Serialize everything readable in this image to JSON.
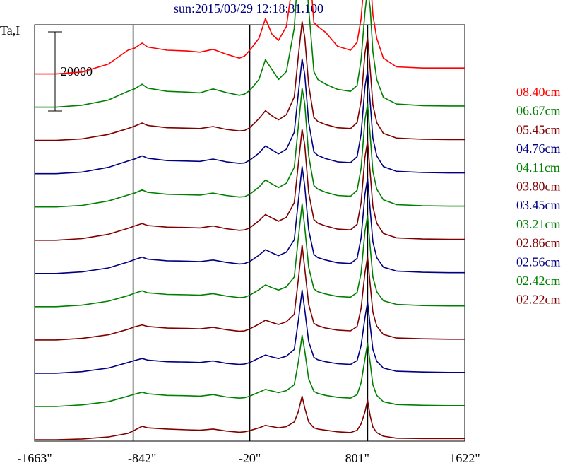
{
  "title": "sun:2015/03/29 12:18:31.100",
  "ylabel": "Ta,I",
  "scale_bar_label": "20000",
  "colors": {
    "red": "#ff0000",
    "green": "#008000",
    "darkred": "#800000",
    "navy": "#000080",
    "black": "#000000"
  },
  "chart_data": {
    "type": "line",
    "title": "sun:2015/03/29 12:18:31.100",
    "ylabel": "Ta,I",
    "x_ticks": [
      "-1663\"",
      "-842\"",
      "-20\"",
      "801\"",
      "1622\""
    ],
    "xlim": [
      -1663,
      1622
    ],
    "vertical_lines": [
      -910,
      -20,
      880
    ],
    "scale_bar": 20000,
    "stack_offset": 8400,
    "x": [
      -1663,
      -1500,
      -1300,
      -1100,
      -950,
      -900,
      -842,
      -800,
      -650,
      -500,
      -400,
      -300,
      -200,
      -100,
      -60,
      -20,
      50,
      100,
      150,
      200,
      260,
      320,
      350,
      380,
      400,
      430,
      470,
      500,
      560,
      650,
      750,
      800,
      830,
      860,
      880,
      900,
      920,
      950,
      1000,
      1100,
      1300,
      1500,
      1622
    ],
    "series": [
      {
        "name": "08.40cm",
        "color": "red",
        "values": [
          0,
          0,
          500,
          2500,
          6000,
          6500,
          7800,
          6800,
          6000,
          5800,
          5500,
          6200,
          5000,
          4000,
          4500,
          6000,
          9000,
          14000,
          10000,
          8500,
          12000,
          26000,
          36000,
          40000,
          38000,
          30000,
          13000,
          12000,
          10500,
          7000,
          6000,
          8000,
          14000,
          26000,
          32000,
          25000,
          15000,
          9000,
          4000,
          1800,
          1500,
          1500,
          1500
        ]
      },
      {
        "name": "06.67cm",
        "color": "green",
        "values": [
          0,
          0,
          500,
          1800,
          4000,
          4600,
          5800,
          4800,
          4000,
          3800,
          3600,
          4600,
          3700,
          3000,
          3300,
          4200,
          7000,
          12000,
          9500,
          7000,
          9000,
          20000,
          35000,
          42000,
          38000,
          25000,
          9000,
          7000,
          5800,
          4500,
          4000,
          5500,
          12000,
          24000,
          30000,
          25000,
          14000,
          7000,
          2500,
          800,
          400,
          300,
          300
        ]
      },
      {
        "name": "05.45cm",
        "color": "darkred",
        "values": [
          0,
          0,
          400,
          1500,
          3000,
          3600,
          4400,
          3800,
          3200,
          3100,
          3000,
          3500,
          2800,
          2400,
          2500,
          3200,
          5500,
          7500,
          6200,
          5200,
          6500,
          11000,
          21000,
          30000,
          26000,
          14000,
          5800,
          4800,
          4000,
          3200,
          3000,
          4500,
          10000,
          22000,
          26000,
          18000,
          9000,
          4500,
          1800,
          600,
          300,
          200,
          200
        ]
      },
      {
        "name": "04.76cm",
        "color": "navy",
        "values": [
          0,
          0,
          400,
          1600,
          3200,
          3700,
          4500,
          3900,
          3300,
          3200,
          3100,
          3700,
          3000,
          2600,
          2700,
          3400,
          5200,
          7000,
          6000,
          5000,
          6200,
          10500,
          20000,
          29000,
          25000,
          13000,
          5500,
          4600,
          3800,
          3000,
          2800,
          4300,
          10000,
          22000,
          26000,
          18000,
          9000,
          4500,
          1800,
          600,
          300,
          200,
          200
        ]
      },
      {
        "name": "04.11cm",
        "color": "green",
        "values": [
          0,
          0,
          400,
          1500,
          3000,
          3500,
          4300,
          3700,
          3200,
          3100,
          3000,
          3500,
          2900,
          2500,
          2600,
          3200,
          5000,
          6800,
          5800,
          4900,
          6000,
          10000,
          20000,
          30000,
          26000,
          13000,
          5400,
          4500,
          3700,
          2900,
          2700,
          4200,
          9800,
          22000,
          26000,
          18000,
          9000,
          4500,
          1800,
          600,
          300,
          200,
          200
        ]
      },
      {
        "name": "03.80cm",
        "color": "darkred",
        "values": [
          0,
          0,
          400,
          1500,
          3000,
          3600,
          4200,
          3700,
          3300,
          3200,
          3100,
          3600,
          2900,
          2500,
          2600,
          3100,
          4900,
          6500,
          5600,
          4800,
          5800,
          9500,
          19000,
          28000,
          24000,
          12000,
          5200,
          4300,
          3600,
          2800,
          2600,
          4000,
          9500,
          21000,
          25000,
          17000,
          8500,
          4300,
          1700,
          600,
          300,
          200,
          200
        ]
      },
      {
        "name": "03.45cm",
        "color": "navy",
        "values": [
          0,
          0,
          400,
          1400,
          2900,
          3500,
          4100,
          3600,
          3200,
          3100,
          3000,
          3400,
          2800,
          2400,
          2500,
          3000,
          4600,
          6000,
          5200,
          4500,
          5400,
          8500,
          18000,
          27000,
          22000,
          11000,
          4800,
          4000,
          3400,
          2700,
          2500,
          3800,
          9000,
          20000,
          24000,
          16000,
          8000,
          4000,
          1600,
          600,
          300,
          200,
          200
        ]
      },
      {
        "name": "03.21cm",
        "color": "green",
        "values": [
          0,
          0,
          400,
          1400,
          2800,
          3400,
          4000,
          3500,
          3100,
          3000,
          2900,
          3300,
          2700,
          2300,
          2400,
          2900,
          4300,
          5500,
          4800,
          4200,
          5000,
          7500,
          17000,
          26000,
          20000,
          10000,
          4500,
          3800,
          3200,
          2600,
          2400,
          3600,
          8500,
          19000,
          23000,
          15000,
          7500,
          3800,
          1500,
          600,
          300,
          200,
          200
        ]
      },
      {
        "name": "02.86cm",
        "color": "darkred",
        "values": [
          0,
          0,
          400,
          1300,
          2700,
          3300,
          3800,
          3400,
          3000,
          2900,
          2800,
          3200,
          2600,
          2200,
          2300,
          2800,
          4000,
          5000,
          4400,
          3900,
          4600,
          6500,
          15000,
          24000,
          18000,
          9000,
          4200,
          3600,
          3000,
          2500,
          2300,
          3400,
          8000,
          17000,
          21000,
          14000,
          7000,
          3500,
          1400,
          500,
          300,
          200,
          200
        ]
      },
      {
        "name": "02.56cm",
        "color": "navy",
        "values": [
          0,
          0,
          400,
          1300,
          2700,
          3200,
          3700,
          3300,
          2900,
          2800,
          2700,
          3100,
          2500,
          2200,
          2300,
          2700,
          3800,
          4600,
          4100,
          3700,
          4300,
          6000,
          13000,
          21000,
          16000,
          8000,
          4000,
          3400,
          2900,
          2400,
          2200,
          3200,
          7000,
          14000,
          18000,
          12000,
          6000,
          3000,
          1300,
          500,
          300,
          200,
          200
        ]
      },
      {
        "name": "02.42cm",
        "color": "green",
        "values": [
          0,
          0,
          400,
          1200,
          2600,
          3100,
          3600,
          3200,
          2800,
          2700,
          2600,
          3000,
          2400,
          2100,
          2200,
          2600,
          3600,
          4300,
          3900,
          3500,
          4000,
          5500,
          11000,
          18000,
          14000,
          7000,
          3800,
          3300,
          2800,
          2300,
          2100,
          3000,
          6000,
          12000,
          16000,
          11000,
          5500,
          2800,
          1200,
          500,
          300,
          200,
          200
        ]
      },
      {
        "name": "02.22cm",
        "color": "darkred",
        "values": [
          0,
          0,
          200,
          700,
          1600,
          2400,
          3400,
          3000,
          2700,
          2500,
          2400,
          2700,
          2200,
          1900,
          2000,
          2300,
          3000,
          3600,
          3300,
          3000,
          3300,
          4500,
          7000,
          11000,
          8000,
          4500,
          3000,
          2700,
          2400,
          2000,
          1800,
          2400,
          4000,
          7000,
          10000,
          6000,
          3200,
          1800,
          900,
          400,
          300,
          300,
          300
        ]
      }
    ]
  }
}
